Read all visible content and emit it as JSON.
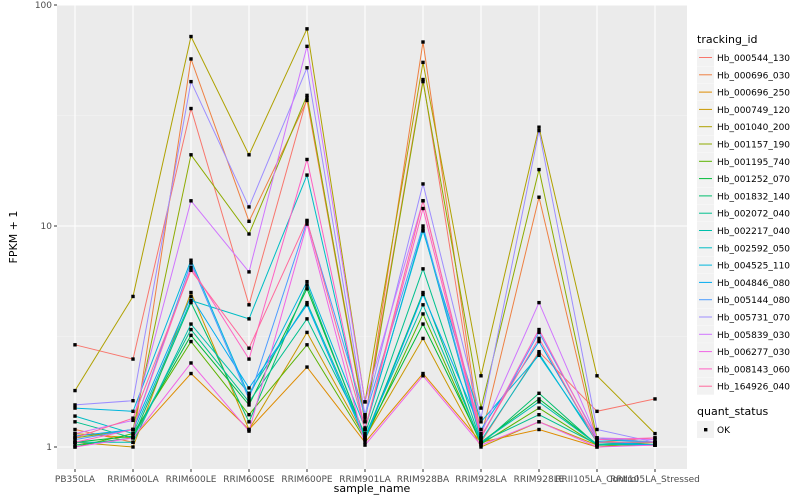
{
  "chart_data": {
    "type": "line",
    "xlabel": "sample_name",
    "ylabel": "FPKM + 1",
    "y_scale": "log10",
    "ylim": [
      1,
      100
    ],
    "y_ticks": [
      1,
      10,
      100
    ],
    "y_tick_labels": [
      "1",
      "10",
      "100"
    ],
    "grid": true,
    "legend_position": "right",
    "categories": [
      "PB350LA",
      "RRIM600LA",
      "RRIM600LE",
      "RRIM600SE",
      "RRIM600PE",
      "RRIM901LA",
      "RRIM928BA",
      "RRIM928LA",
      "RRIM928LE",
      "RRII105LA_Control",
      "RRII105LA_Stressed"
    ],
    "legend_color_title": "tracking_id",
    "legend_shape_title": "quant_status",
    "shape_entry": "OK",
    "series": [
      {
        "name": "Hb_000544_130",
        "color": "#F8766D",
        "values": [
          2.9,
          2.5,
          34,
          4.4,
          38,
          1.35,
          46,
          1.05,
          2.7,
          1.45,
          1.65
        ]
      },
      {
        "name": "Hb_000696_030",
        "color": "#EE8042",
        "values": [
          1.2,
          1.05,
          57,
          10.5,
          37,
          1.3,
          68,
          1.1,
          13.5,
          1.05,
          1.1
        ]
      },
      {
        "name": "Hb_000696_250",
        "color": "#DE8C00",
        "values": [
          1.15,
          1.1,
          2.15,
          1.2,
          2.3,
          1.05,
          2.15,
          1.05,
          1.2,
          1.0,
          1.05
        ]
      },
      {
        "name": "Hb_000749_120",
        "color": "#C99800",
        "values": [
          1.05,
          1.0,
          5.0,
          1.2,
          3.3,
          1.1,
          3.1,
          1.0,
          1.3,
          1.02,
          1.02
        ]
      },
      {
        "name": "Hb_001040_200",
        "color": "#AFA100",
        "values": [
          1.8,
          4.8,
          72,
          21,
          78,
          1.6,
          55,
          2.1,
          28,
          2.1,
          1.15
        ]
      },
      {
        "name": "Hb_001157_190",
        "color": "#8DAB00",
        "values": [
          1.1,
          1.2,
          21,
          9.2,
          39,
          1.3,
          45,
          1.5,
          18,
          1.1,
          1.05
        ]
      },
      {
        "name": "Hb_001195_740",
        "color": "#5BB300",
        "values": [
          1.0,
          1.15,
          3.0,
          1.4,
          2.9,
          1.08,
          4.0,
          1.03,
          1.5,
          1.02,
          1.05
        ]
      },
      {
        "name": "Hb_001252_070",
        "color": "#00BA38",
        "values": [
          1.05,
          1.12,
          3.2,
          1.55,
          5.2,
          1.12,
          3.6,
          1.05,
          1.65,
          1.03,
          1.02
        ]
      },
      {
        "name": "Hb_001832_140",
        "color": "#00BE6C",
        "values": [
          1.02,
          1.1,
          4.5,
          1.3,
          5.4,
          1.1,
          5.0,
          1.03,
          1.75,
          1.02,
          1.03
        ]
      },
      {
        "name": "Hb_002072_040",
        "color": "#00C08D",
        "values": [
          1.3,
          1.1,
          3.4,
          1.6,
          3.8,
          1.15,
          6.4,
          1.05,
          1.4,
          1.03,
          1.05
        ]
      },
      {
        "name": "Hb_002217_040",
        "color": "#00C0AB",
        "values": [
          1.05,
          1.05,
          3.6,
          1.75,
          4.5,
          1.12,
          4.4,
          1.05,
          1.6,
          1.03,
          1.02
        ]
      },
      {
        "name": "Hb_002592_050",
        "color": "#00BDC5",
        "values": [
          1.38,
          1.15,
          4.6,
          3.8,
          17,
          1.2,
          9.7,
          1.07,
          2.65,
          1.05,
          1.02
        ]
      },
      {
        "name": "Hb_004525_110",
        "color": "#00B6DC",
        "values": [
          1.5,
          1.45,
          7.0,
          1.7,
          5.6,
          1.22,
          9.5,
          1.3,
          2.6,
          1.08,
          1.05
        ]
      },
      {
        "name": "Hb_004846_080",
        "color": "#00ABF0",
        "values": [
          1.12,
          1.2,
          4.8,
          1.85,
          4.4,
          1.08,
          4.9,
          1.2,
          3.0,
          1.06,
          1.02
        ]
      },
      {
        "name": "Hb_005144_080",
        "color": "#4C9CFF",
        "values": [
          1.08,
          1.2,
          6.8,
          1.65,
          10.5,
          1.38,
          10,
          1.1,
          3.3,
          1.1,
          1.05
        ]
      },
      {
        "name": "Hb_005731_070",
        "color": "#9D8DFF",
        "values": [
          1.55,
          1.62,
          45,
          12.2,
          52,
          1.4,
          15.5,
          1.35,
          27,
          1.2,
          1.05
        ]
      },
      {
        "name": "Hb_005839_030",
        "color": "#D075FE",
        "values": [
          1.15,
          1.32,
          13,
          6.2,
          65,
          1.6,
          13,
          1.15,
          4.5,
          1.1,
          1.08
        ]
      },
      {
        "name": "Hb_006277_030",
        "color": "#F064E5",
        "values": [
          1.0,
          1.1,
          2.4,
          1.18,
          10.2,
          1.02,
          2.1,
          1.02,
          1.3,
          1.0,
          1.02
        ]
      },
      {
        "name": "Hb_008143_060",
        "color": "#FF61C3",
        "values": [
          1.05,
          1.2,
          6.5,
          2.5,
          20,
          1.2,
          12,
          1.1,
          3.4,
          1.08,
          1.1
        ]
      },
      {
        "name": "Hb_164926_040",
        "color": "#FF699C",
        "values": [
          1.1,
          1.35,
          6.3,
          2.8,
          10.6,
          1.2,
          13,
          1.12,
          3.1,
          1.05,
          1.05
        ]
      }
    ]
  }
}
